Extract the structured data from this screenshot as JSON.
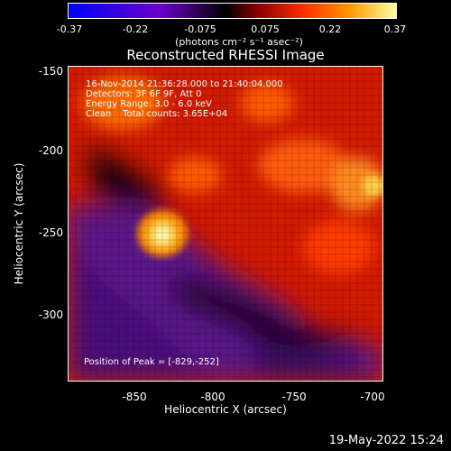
{
  "title": "Reconstructed RHESSI Image",
  "colorbar": {
    "ticks": [
      "-0.37",
      "-0.22",
      "-0.075",
      "0.075",
      "0.22",
      "0.37"
    ],
    "units": "(photons cm⁻² s⁻¹ asec⁻²)"
  },
  "info": {
    "time_range": "16-Nov-2014 21:36:28.000 to 21:40:04.000",
    "detectors": "Detectors: 3F 6F 9F, Att 0",
    "energy": "Energy Range: 3.0 - 6.0 keV",
    "clean": "Clean    Total counts: 3.65E+04"
  },
  "peak_text": "Position of Peak = [-829,-252]",
  "axes": {
    "xlabel": "Heliocentric X (arcsec)",
    "ylabel": "Heliocentric Y (arcsec)",
    "xticks": [
      "-850",
      "-800",
      "-750",
      "-700"
    ],
    "yticks": [
      "-150",
      "-200",
      "-250",
      "-300"
    ]
  },
  "timestamp": "19-May-2022 15:24",
  "colors": {
    "colorbar_stops": [
      "#0000ff",
      "#6a00c8",
      "#000000",
      "#8b0000",
      "#ff3000",
      "#ff9900",
      "#ffffa0"
    ]
  }
}
